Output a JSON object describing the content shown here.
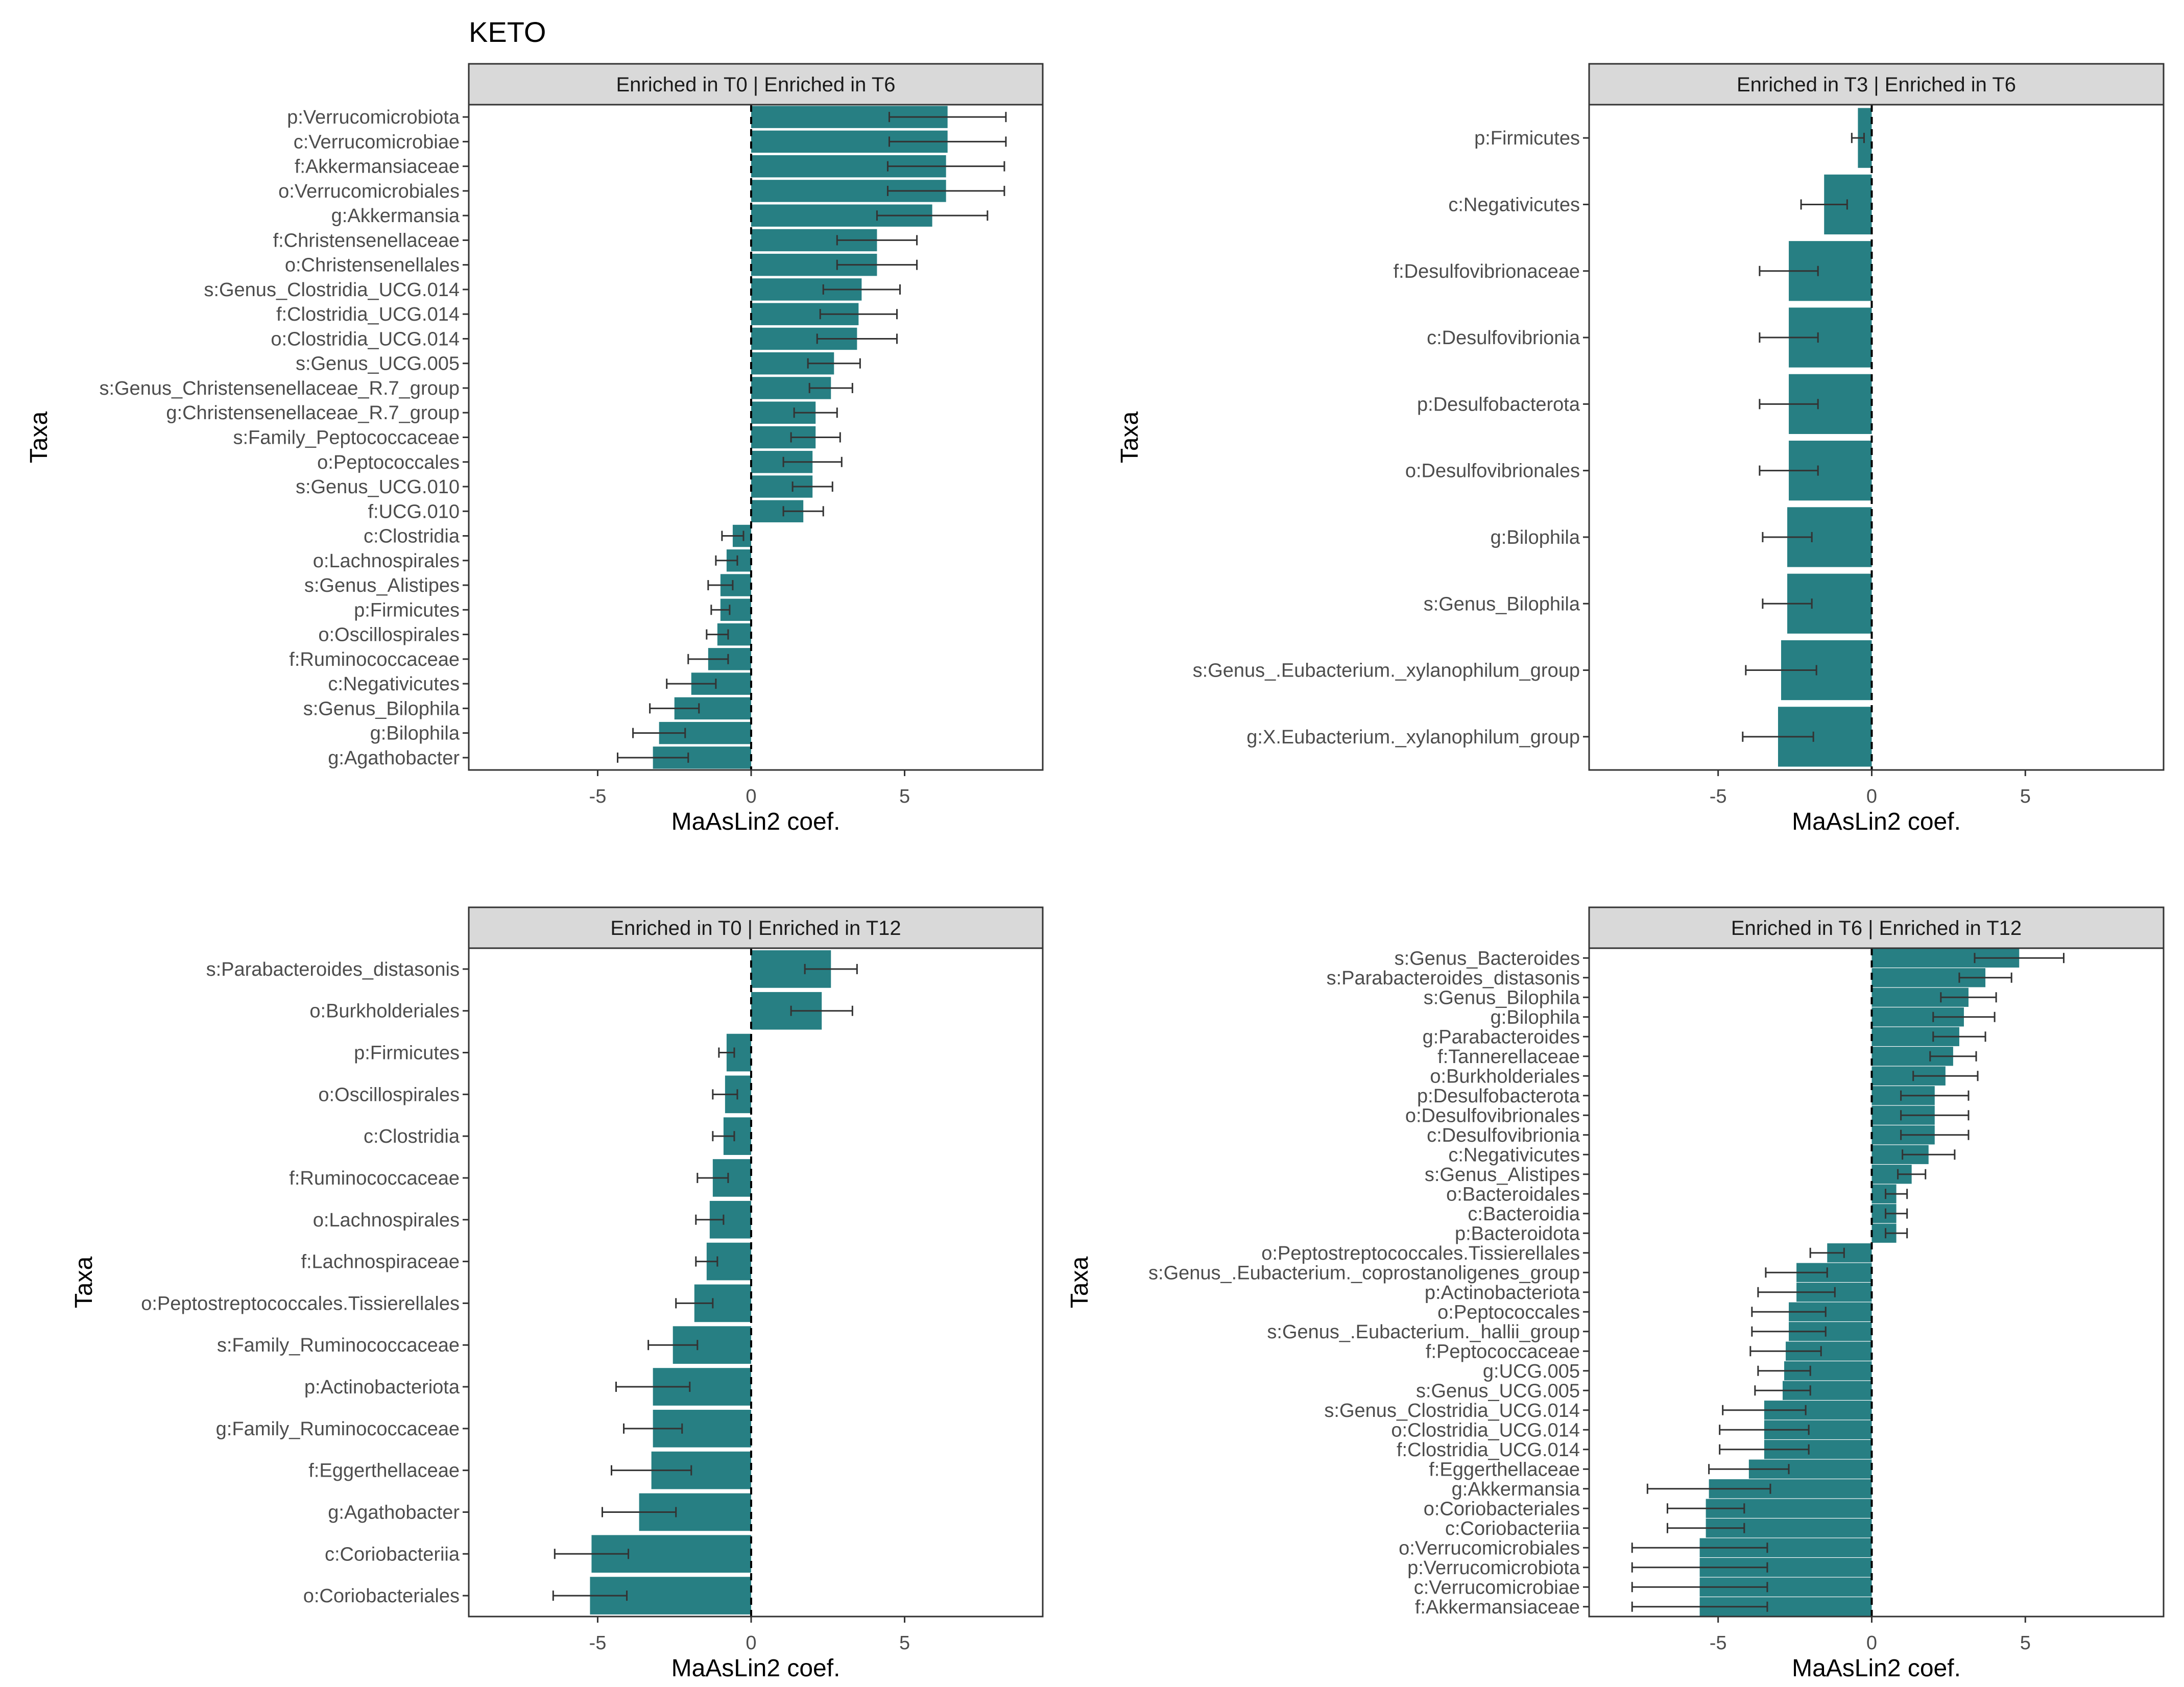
{
  "figure": {
    "title": "KETO"
  },
  "colors": {
    "bar": "#277f83",
    "error_bar": "#333333",
    "strip_bg": "#d9d9d9",
    "frame": "#333333",
    "zero_line": "#000000"
  },
  "chart_data": [
    {
      "type": "bar",
      "orientation": "horizontal",
      "position": "top-left",
      "strip_label": "Enriched in T0 | Enriched in T6",
      "xlabel": "MaAsLin2 coef.",
      "ylabel": "Taxa",
      "xlim": [
        -9.2,
        9.5
      ],
      "xticks": [
        -5,
        0,
        5
      ],
      "xtick_labels": [
        "-5",
        "0",
        "5"
      ],
      "zero_line": "dashed",
      "categories": [
        "p:Verrucomicrobiota",
        "c:Verrucomicrobiae",
        "f:Akkermansiaceae",
        "o:Verrucomicrobiales",
        "g:Akkermansia",
        "f:Christensenellaceae",
        "o:Christensenellales",
        "s:Genus_Clostridia_UCG.014",
        "f:Clostridia_UCG.014",
        "o:Clostridia_UCG.014",
        "s:Genus_UCG.005",
        "s:Genus_Christensenellaceae_R.7_group",
        "g:Christensenellaceae_R.7_group",
        "s:Family_Peptococcaceae",
        "o:Peptococcales",
        "s:Genus_UCG.010",
        "f:UCG.010",
        "c:Clostridia",
        "o:Lachnospirales",
        "s:Genus_Alistipes",
        "p:Firmicutes",
        "o:Oscillospirales",
        "f:Ruminococcaceae",
        "c:Negativicutes",
        "s:Genus_Bilophila",
        "g:Bilophila",
        "g:Agathobacter"
      ],
      "values": [
        6.4,
        6.4,
        6.35,
        6.35,
        5.9,
        4.1,
        4.1,
        3.6,
        3.5,
        3.45,
        2.7,
        2.6,
        2.1,
        2.1,
        2.0,
        2.0,
        1.7,
        -0.6,
        -0.8,
        -1.0,
        -1.0,
        -1.1,
        -1.4,
        -1.95,
        -2.5,
        -3.0,
        -3.2
      ],
      "errors": [
        1.9,
        1.9,
        1.9,
        1.9,
        1.8,
        1.3,
        1.3,
        1.25,
        1.25,
        1.3,
        0.85,
        0.7,
        0.7,
        0.8,
        0.95,
        0.65,
        0.65,
        0.35,
        0.35,
        0.4,
        0.3,
        0.35,
        0.65,
        0.8,
        0.8,
        0.85,
        1.15
      ]
    },
    {
      "type": "bar",
      "orientation": "horizontal",
      "position": "top-right",
      "strip_label": "Enriched in T3 | Enriched in T6",
      "xlabel": "MaAsLin2 coef.",
      "ylabel": "Taxa",
      "xlim": [
        -9.2,
        9.5
      ],
      "xticks": [
        -5,
        0,
        5
      ],
      "xtick_labels": [
        "-5",
        "0",
        "5"
      ],
      "zero_line": "dashed",
      "categories": [
        "p:Firmicutes",
        "c:Negativicutes",
        "f:Desulfovibrionaceae",
        "c:Desulfovibrionia",
        "p:Desulfobacterota",
        "o:Desulfovibrionales",
        "g:Bilophila",
        "s:Genus_Bilophila",
        "s:Genus_.Eubacterium._xylanophilum_group",
        "g:X.Eubacterium._xylanophilum_group"
      ],
      "values": [
        -0.45,
        -1.55,
        -2.7,
        -2.7,
        -2.7,
        -2.7,
        -2.75,
        -2.75,
        -2.95,
        -3.05
      ],
      "errors": [
        0.2,
        0.75,
        0.95,
        0.95,
        0.95,
        0.95,
        0.8,
        0.8,
        1.15,
        1.15
      ]
    },
    {
      "type": "bar",
      "orientation": "horizontal",
      "position": "bottom-left",
      "strip_label": "Enriched in T0 | Enriched in T12",
      "xlabel": "MaAsLin2 coef.",
      "ylabel": "Taxa",
      "xlim": [
        -9.2,
        9.5
      ],
      "xticks": [
        -5,
        0,
        5
      ],
      "xtick_labels": [
        "-5",
        "0",
        "5"
      ],
      "zero_line": "dashed",
      "categories": [
        "s:Parabacteroides_distasonis",
        "o:Burkholderiales",
        "p:Firmicutes",
        "o:Oscillospirales",
        "c:Clostridia",
        "f:Ruminococcaceae",
        "o:Lachnospirales",
        "f:Lachnospiraceae",
        "o:Peptostreptococcales.Tissierellales",
        "s:Family_Ruminococcaceae",
        "p:Actinobacteriota",
        "g:Family_Ruminococcaceae",
        "f:Eggerthellaceae",
        "g:Agathobacter",
        "c:Coriobacteriia",
        "o:Coriobacteriales"
      ],
      "values": [
        2.6,
        2.3,
        -0.8,
        -0.85,
        -0.9,
        -1.25,
        -1.35,
        -1.45,
        -1.85,
        -2.55,
        -3.2,
        -3.2,
        -3.25,
        -3.65,
        -5.2,
        -5.25
      ],
      "errors": [
        0.85,
        1.0,
        0.25,
        0.4,
        0.35,
        0.5,
        0.45,
        0.35,
        0.6,
        0.8,
        1.2,
        0.95,
        1.3,
        1.2,
        1.2,
        1.2
      ]
    },
    {
      "type": "bar",
      "orientation": "horizontal",
      "position": "bottom-right",
      "strip_label": "Enriched in T6 | Enriched in T12",
      "xlabel": "MaAsLin2 coef.",
      "ylabel": "Taxa",
      "xlim": [
        -9.2,
        9.5
      ],
      "xticks": [
        -5,
        0,
        5
      ],
      "xtick_labels": [
        "-5",
        "0",
        "5"
      ],
      "zero_line": "dashed",
      "categories": [
        "s:Genus_Bacteroides",
        "s:Parabacteroides_distasonis",
        "s:Genus_Bilophila",
        "g:Bilophila",
        "g:Parabacteroides",
        "f:Tannerellaceae",
        "o:Burkholderiales",
        "p:Desulfobacterota",
        "o:Desulfovibrionales",
        "c:Desulfovibrionia",
        "c:Negativicutes",
        "s:Genus_Alistipes",
        "o:Bacteroidales",
        "c:Bacteroidia",
        "p:Bacteroidota",
        "o:Peptostreptococcales.Tissierellales",
        "s:Genus_.Eubacterium._coprostanoligenes_group",
        "p:Actinobacteriota",
        "o:Peptococcales",
        "s:Genus_.Eubacterium._hallii_group",
        "f:Peptococcaceae",
        "g:UCG.005",
        "s:Genus_UCG.005",
        "s:Genus_Clostridia_UCG.014",
        "o:Clostridia_UCG.014",
        "f:Clostridia_UCG.014",
        "f:Eggerthellaceae",
        "g:Akkermansia",
        "o:Coriobacteriales",
        "c:Coriobacteriia",
        "o:Verrucomicrobiales",
        "p:Verrucomicrobiota",
        "c:Verrucomicrobiae",
        "f:Akkermansiaceae"
      ],
      "values": [
        4.8,
        3.7,
        3.15,
        3.0,
        2.85,
        2.65,
        2.4,
        2.05,
        2.05,
        2.05,
        1.85,
        1.3,
        0.8,
        0.8,
        0.8,
        -1.45,
        -2.45,
        -2.45,
        -2.7,
        -2.7,
        -2.8,
        -2.85,
        -2.9,
        -3.5,
        -3.5,
        -3.5,
        -4.0,
        -5.3,
        -5.4,
        -5.4,
        -5.6,
        -5.6,
        -5.6,
        -5.6
      ],
      "errors": [
        1.45,
        0.85,
        0.9,
        1.0,
        0.85,
        0.75,
        1.05,
        1.1,
        1.1,
        1.1,
        0.85,
        0.45,
        0.35,
        0.35,
        0.35,
        0.55,
        1.0,
        1.25,
        1.2,
        1.2,
        1.15,
        0.85,
        0.9,
        1.35,
        1.45,
        1.45,
        1.3,
        2.0,
        1.25,
        1.25,
        2.2,
        2.2,
        2.2,
        2.2
      ]
    }
  ]
}
